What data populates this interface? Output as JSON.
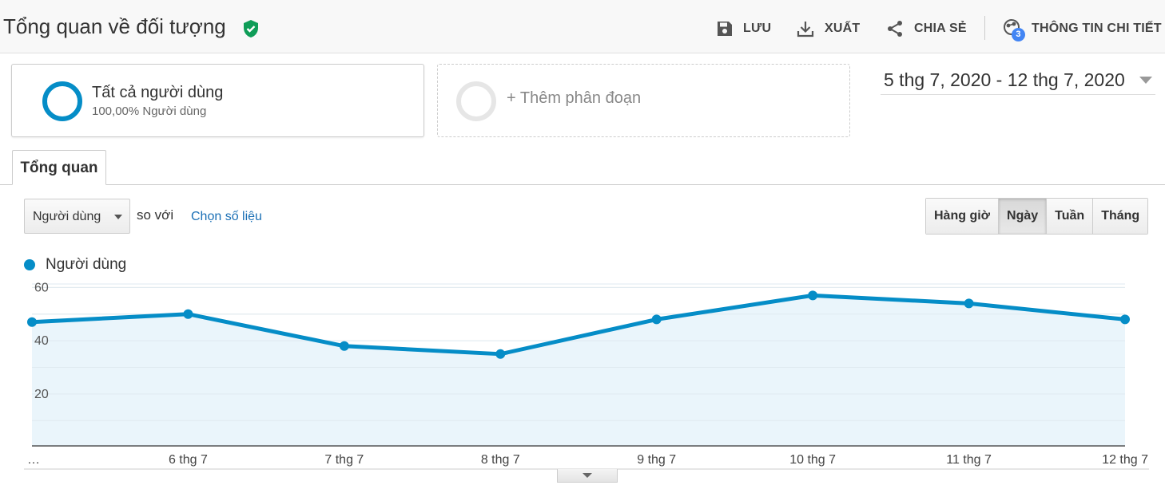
{
  "header": {
    "title": "Tổng quan về đối tượng",
    "save_label": "LƯU",
    "export_label": "XUẤT",
    "share_label": "CHIA SẺ",
    "insights_label": "THÔNG TIN CHI TIẾT",
    "insights_badge": "3"
  },
  "segments": {
    "active_name": "Tất cả người dùng",
    "active_sub": "100,00% Người dùng",
    "add_label": "+ Thêm phân đoạn"
  },
  "date_range": "5 thg 7, 2020 - 12 thg 7, 2020",
  "tabs": [
    "Tổng quan"
  ],
  "controls": {
    "metric": "Người dùng",
    "compare_text": "so với",
    "pick_metric": "Chọn số liệu",
    "granularity": [
      "Hàng giờ",
      "Ngày",
      "Tuần",
      "Tháng"
    ],
    "granularity_selected": "Ngày"
  },
  "colors": {
    "series": "#058dc7",
    "fill": "#e6f3fa",
    "shield": "#0f9d58",
    "badge": "#4285f4"
  },
  "chart_data": {
    "type": "area",
    "series": [
      {
        "name": "Người dùng",
        "values": [
          47,
          50,
          38,
          35,
          48,
          57,
          54,
          48
        ]
      }
    ],
    "x": [
      "5 thg 7",
      "6 thg 7",
      "7 thg 7",
      "8 thg 7",
      "9 thg 7",
      "10 thg 7",
      "11 thg 7",
      "12 thg 7"
    ],
    "x_tick_labels": [
      "…",
      "6 thg 7",
      "7 thg 7",
      "8 thg 7",
      "9 thg 7",
      "10 thg 7",
      "11 thg 7",
      "12 thg 7"
    ],
    "y_ticks": [
      20,
      40,
      60
    ],
    "ylim": [
      0,
      60
    ],
    "grid": true,
    "legend": "top-left"
  }
}
